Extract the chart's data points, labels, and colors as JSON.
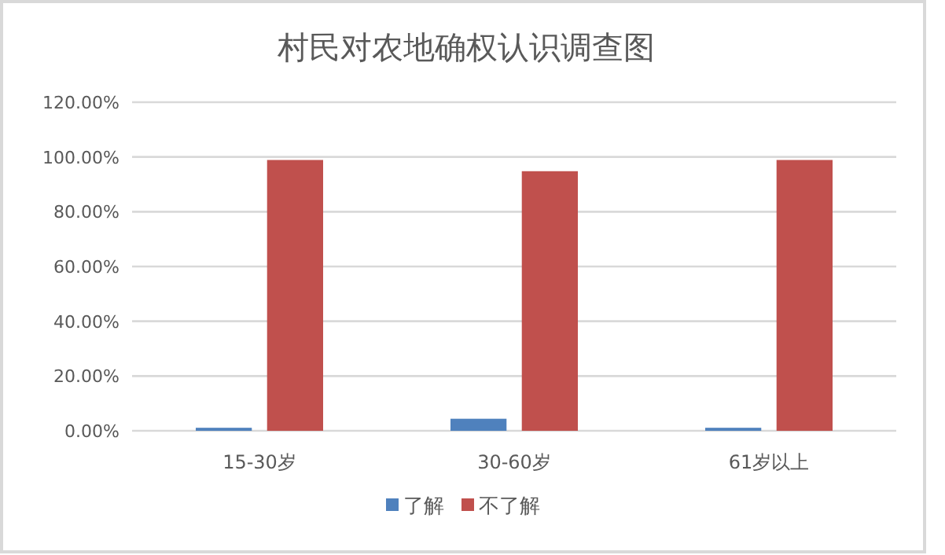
{
  "chart_data": {
    "type": "bar",
    "title": "村民对农地确权认识调查图",
    "categories": [
      "15-30岁",
      "30-60岁",
      "61岁以上"
    ],
    "series": [
      {
        "name": "了解",
        "color": "#4f81bd",
        "values": [
          1.1,
          4.4,
          1.1
        ]
      },
      {
        "name": "不了解",
        "color": "#c0504d",
        "values": [
          98.9,
          94.8,
          98.9
        ]
      }
    ],
    "ylim": [
      0,
      120
    ],
    "yticks": [
      {
        "value": 0,
        "label": "0.00%"
      },
      {
        "value": 20,
        "label": "20.00%"
      },
      {
        "value": 40,
        "label": "40.00%"
      },
      {
        "value": 60,
        "label": "60.00%"
      },
      {
        "value": 80,
        "label": "80.00%"
      },
      {
        "value": 100,
        "label": "100.00%"
      },
      {
        "value": 120,
        "label": "120.00%"
      }
    ],
    "grid": "y",
    "legend": "bottom"
  }
}
